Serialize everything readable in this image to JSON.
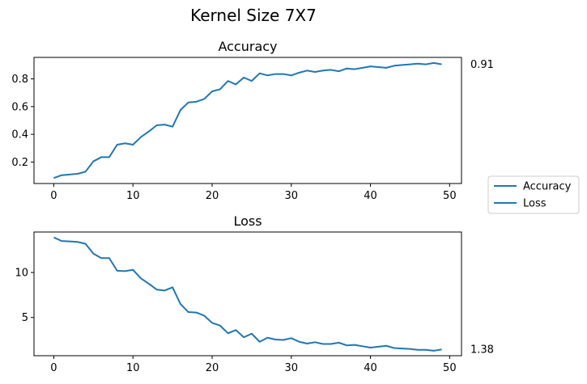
{
  "figure": {
    "suptitle": "Kernel Size 7X7"
  },
  "legend": {
    "placement": "right",
    "entries": [
      "Accuracy",
      "Loss"
    ]
  },
  "chart_data": [
    {
      "type": "line",
      "title": "Accuracy",
      "xlabel": "",
      "ylabel": "",
      "xlim": [
        -2.5,
        51.5
      ],
      "ylim": [
        0.045,
        0.955
      ],
      "xticks": [
        0,
        10,
        20,
        30,
        40,
        50
      ],
      "yticks": [
        0.2,
        0.4,
        0.6,
        0.8
      ],
      "ytick_labels": [
        "0.2",
        "0.4",
        "0.6",
        "0.8"
      ],
      "grid": false,
      "color": "#1f77b4",
      "annotation": "0.91",
      "x": [
        0,
        1,
        2,
        3,
        4,
        5,
        6,
        7,
        8,
        9,
        10,
        11,
        12,
        13,
        14,
        15,
        16,
        17,
        18,
        19,
        20,
        21,
        22,
        23,
        24,
        25,
        26,
        27,
        28,
        29,
        30,
        31,
        32,
        33,
        34,
        35,
        36,
        37,
        38,
        39,
        40,
        41,
        42,
        43,
        44,
        45,
        46,
        47,
        48,
        49
      ],
      "values": [
        0.085,
        0.105,
        0.11,
        0.115,
        0.13,
        0.205,
        0.235,
        0.235,
        0.325,
        0.335,
        0.325,
        0.38,
        0.42,
        0.465,
        0.47,
        0.455,
        0.575,
        0.63,
        0.635,
        0.655,
        0.71,
        0.725,
        0.785,
        0.76,
        0.81,
        0.785,
        0.84,
        0.825,
        0.835,
        0.835,
        0.825,
        0.845,
        0.86,
        0.85,
        0.86,
        0.865,
        0.855,
        0.875,
        0.87,
        0.88,
        0.89,
        0.885,
        0.88,
        0.895,
        0.9,
        0.905,
        0.91,
        0.905,
        0.915,
        0.905
      ]
    },
    {
      "type": "line",
      "title": "Loss",
      "xlabel": "",
      "ylabel": "",
      "xlim": [
        -2.5,
        51.5
      ],
      "ylim": [
        0.75,
        14.5
      ],
      "xticks": [
        0,
        10,
        20,
        30,
        40,
        50
      ],
      "yticks": [
        5,
        10
      ],
      "ytick_labels": [
        "5",
        "10"
      ],
      "grid": false,
      "color": "#1f77b4",
      "annotation": "1.38",
      "x": [
        0,
        1,
        2,
        3,
        4,
        5,
        6,
        7,
        8,
        9,
        10,
        11,
        12,
        13,
        14,
        15,
        16,
        17,
        18,
        19,
        20,
        21,
        22,
        23,
        24,
        25,
        26,
        27,
        28,
        29,
        30,
        31,
        32,
        33,
        34,
        35,
        36,
        37,
        38,
        39,
        40,
        41,
        42,
        43,
        44,
        45,
        46,
        47,
        48,
        49
      ],
      "values": [
        13.9,
        13.5,
        13.45,
        13.4,
        13.2,
        12.1,
        11.6,
        11.6,
        10.2,
        10.15,
        10.3,
        9.35,
        8.75,
        8.1,
        8.0,
        8.35,
        6.5,
        5.6,
        5.55,
        5.2,
        4.4,
        4.1,
        3.25,
        3.6,
        2.8,
        3.2,
        2.3,
        2.75,
        2.55,
        2.5,
        2.7,
        2.3,
        2.1,
        2.25,
        2.05,
        2.05,
        2.2,
        1.9,
        1.95,
        1.8,
        1.65,
        1.75,
        1.85,
        1.6,
        1.55,
        1.5,
        1.4,
        1.4,
        1.3,
        1.45
      ]
    }
  ]
}
